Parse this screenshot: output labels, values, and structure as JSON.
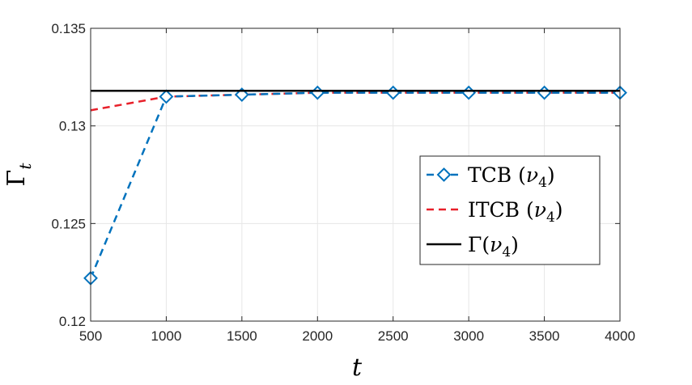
{
  "chart_data": {
    "type": "line",
    "xlabel": "t",
    "ylabel": "Γ_t",
    "ylabel_main": "Γ",
    "ylabel_sub": "t",
    "xlim": [
      500,
      4000
    ],
    "ylim": [
      0.12,
      0.135
    ],
    "xticks": [
      500,
      1000,
      1500,
      2000,
      2500,
      3000,
      3500,
      4000
    ],
    "yticks": [
      0.12,
      0.125,
      0.13,
      0.135
    ],
    "ytick_labels": [
      "0.12",
      "0.125",
      "0.13",
      "0.135"
    ],
    "grid": true,
    "legend_position": "center-right",
    "series": [
      {
        "name": "TCB (ν4)",
        "name_main": "TCB (",
        "name_sym": "ν",
        "name_sub": "4",
        "name_end": ")",
        "style": "dashed",
        "marker": "diamond",
        "color": "#0072BD",
        "x": [
          500,
          1000,
          1500,
          2000,
          2500,
          3000,
          3500,
          4000
        ],
        "y": [
          0.1222,
          0.1315,
          0.1316,
          0.1317,
          0.1317,
          0.1317,
          0.1317,
          0.1317
        ]
      },
      {
        "name": "ITCB (ν4)",
        "name_main": "ITCB (",
        "name_sym": "ν",
        "name_sub": "4",
        "name_end": ")",
        "style": "dashed",
        "marker": "none",
        "color": "#E8202A",
        "x": [
          500,
          1000,
          1500,
          2000,
          2500,
          3000,
          3500,
          4000
        ],
        "y": [
          0.1308,
          0.1315,
          0.1316,
          0.1317,
          0.1317,
          0.1317,
          0.1317,
          0.1317
        ]
      },
      {
        "name": "Γ(ν4)",
        "name_main": "Γ(",
        "name_sym": "ν",
        "name_sub": "4",
        "name_end": ")",
        "style": "solid",
        "marker": "none",
        "color": "#000000",
        "x": [
          500,
          4000
        ],
        "y": [
          0.1318,
          0.1318
        ]
      }
    ]
  }
}
